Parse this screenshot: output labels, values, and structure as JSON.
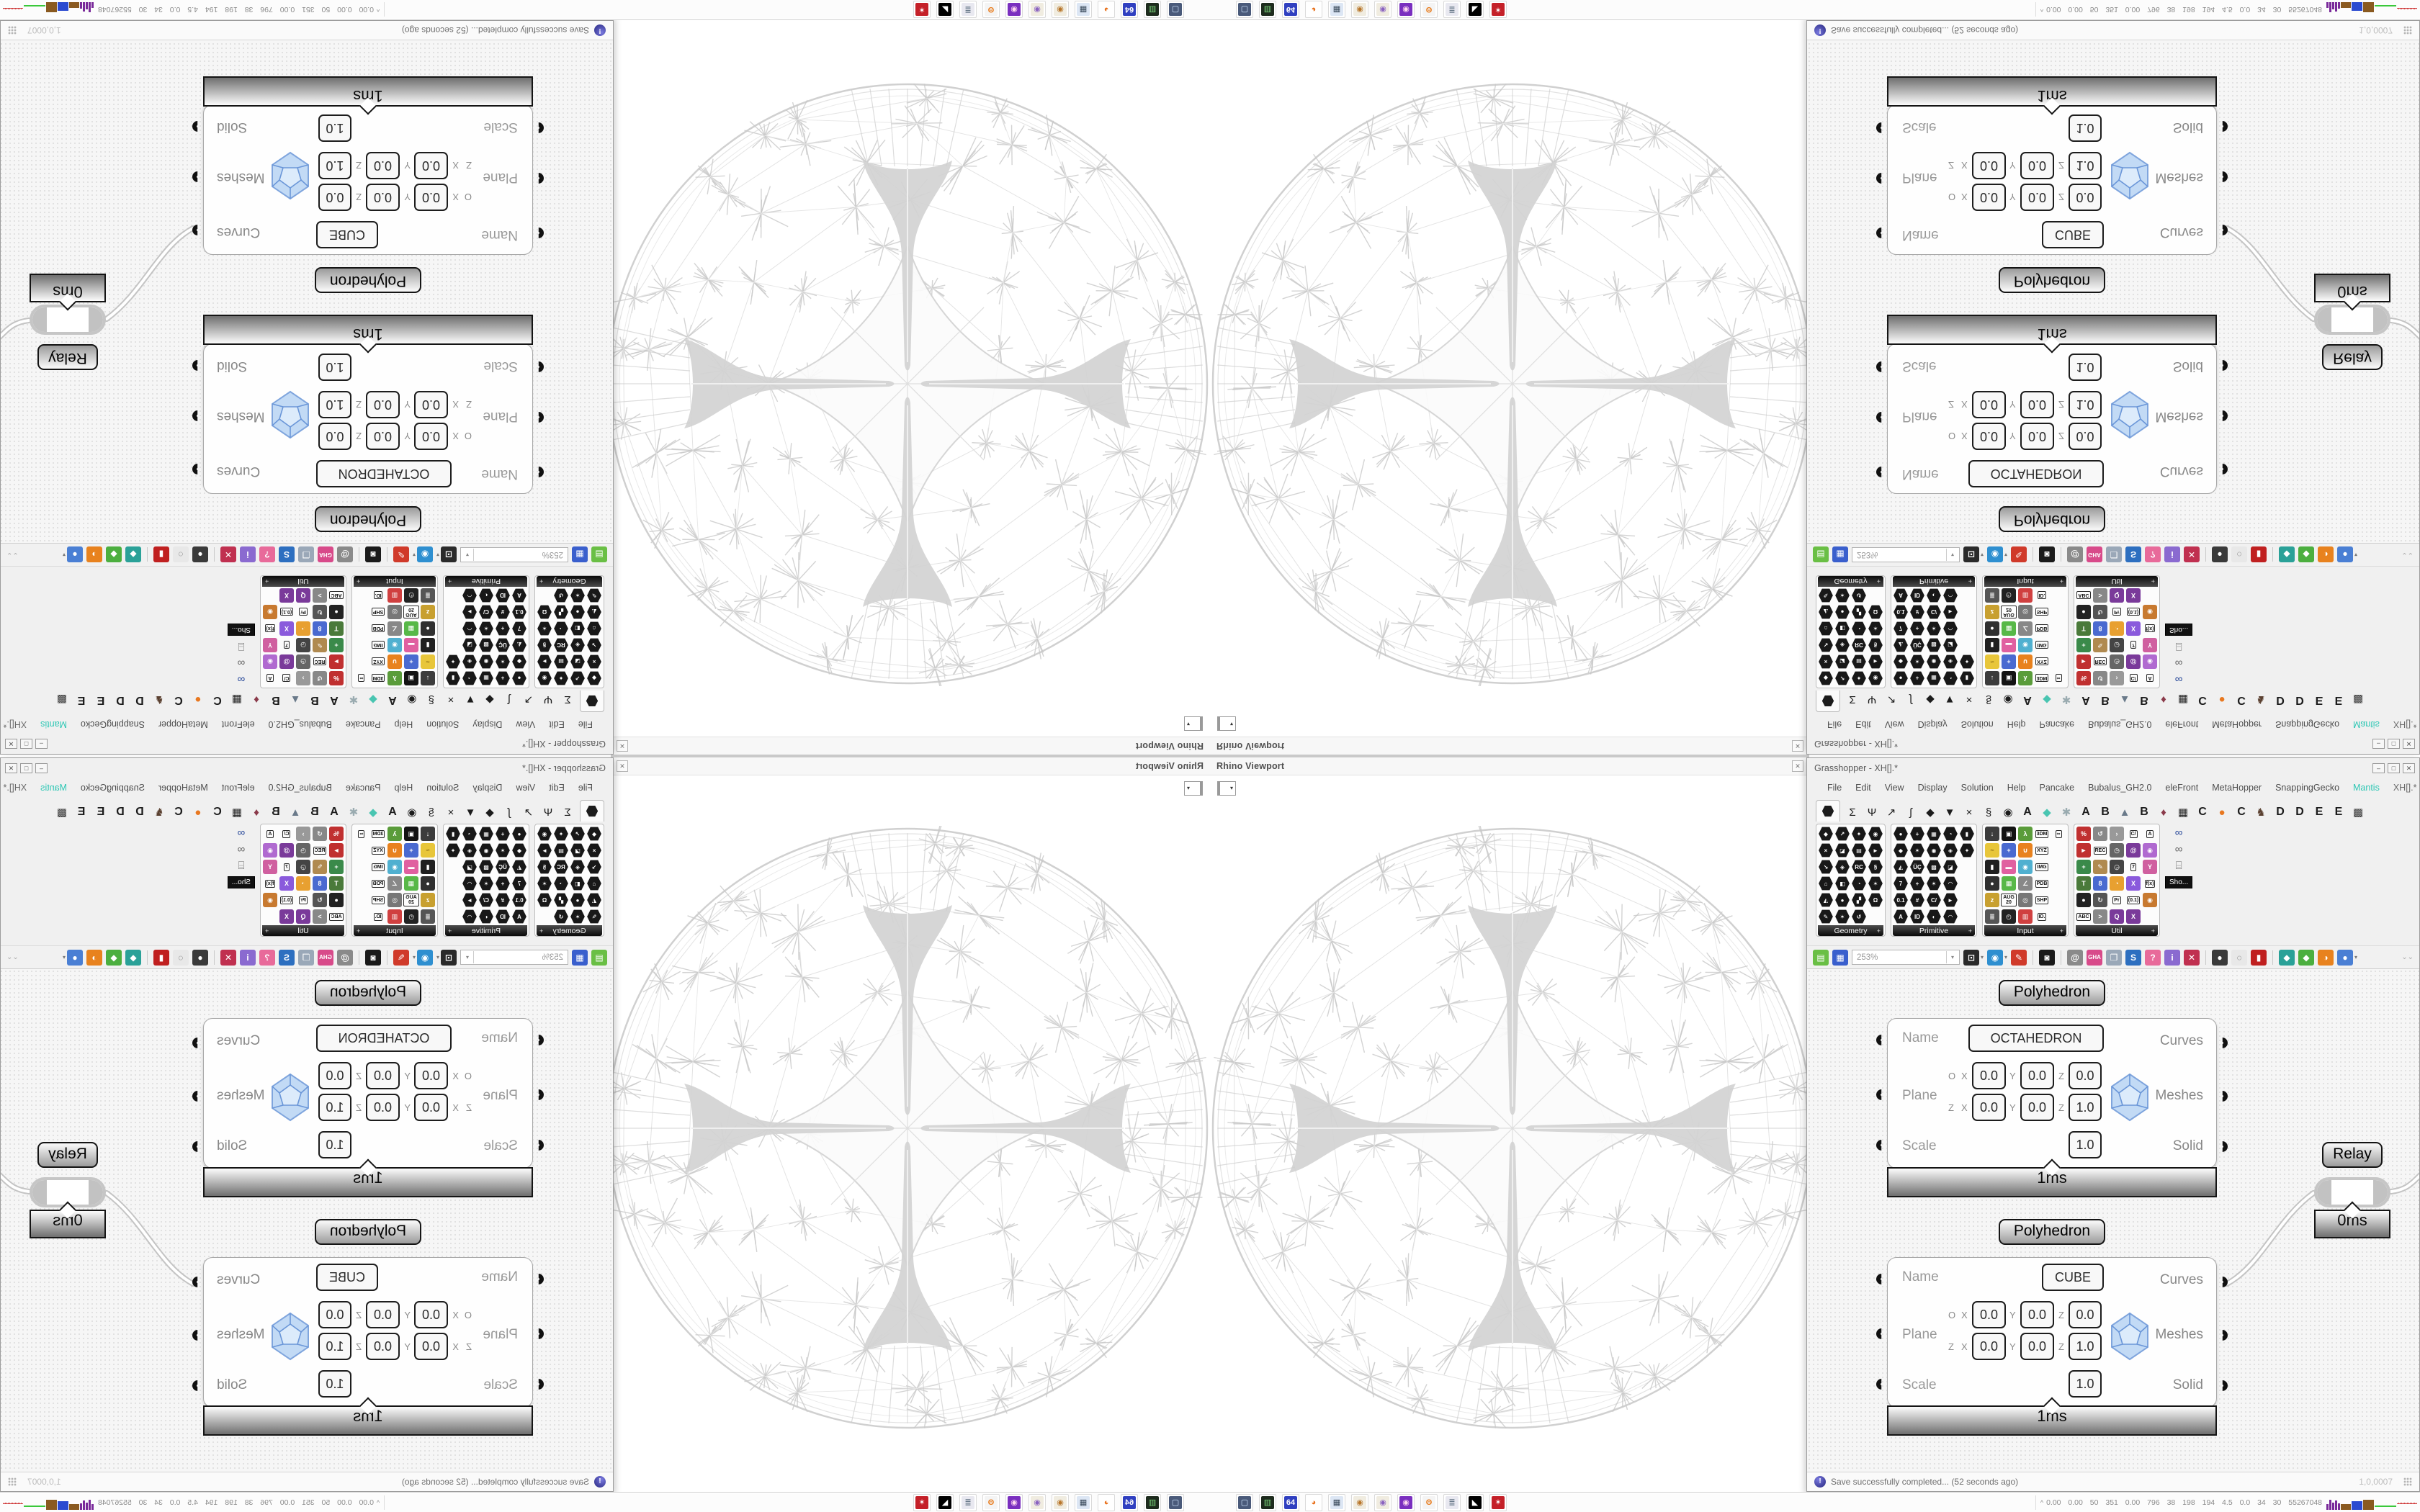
{
  "taskbar": {
    "expand_icon": "^",
    "stats": "0.00 0.00 50 351 0.00 796 38 198 194 4.5 0.0 34 30 55267048",
    "icons": [
      {
        "n": "monitor-icon",
        "g": "▢",
        "bg": "#4a5a7a",
        "fg": "#cfe4ff"
      },
      {
        "n": "green-terminal-icon",
        "g": "▥",
        "bg": "#1d2b1d",
        "fg": "#7ad47a"
      },
      {
        "n": "floppy-64-icon",
        "g": "64",
        "bg": "#3040c0",
        "fg": "#ffffff"
      },
      {
        "n": "firefox-icon",
        "g": "◕",
        "bg": "#ffffff",
        "fg": "#e8701a"
      },
      {
        "n": "calculator-icon",
        "g": "▦",
        "bg": "#dce6f4",
        "fg": "#334455"
      },
      {
        "n": "palette-icon",
        "g": "◉",
        "bg": "#f0ece0",
        "fg": "#b8762a"
      },
      {
        "n": "palette-icon-2",
        "g": "◉",
        "bg": "#f0ece0",
        "fg": "#8a62c0"
      },
      {
        "n": "avatar-purple-icon",
        "g": "◉",
        "bg": "#7a2fbf",
        "fg": "#ffd9f0"
      },
      {
        "n": "blender-icon",
        "g": "ʘ",
        "bg": "#f4f4f4",
        "fg": "#e87a1a"
      },
      {
        "n": "document-scroll-icon",
        "g": "≣",
        "bg": "#e8e8f0",
        "fg": "#667788"
      },
      {
        "n": "black-cat-icon",
        "g": "◣",
        "bg": "#000000",
        "fg": "#ffffff"
      },
      {
        "n": "red-badge-icon",
        "g": "✶",
        "bg": "#c42028",
        "fg": "#ffffff"
      }
    ]
  },
  "rhino": {
    "title": "Rhino Viewport",
    "close_label": "✕",
    "combo_arrow": "▾"
  },
  "gh": {
    "title": "Grasshopper - XH[].*",
    "window_buttons": {
      "min": "–",
      "max": "□",
      "close": "✕"
    },
    "menu": [
      "File",
      "Edit",
      "View",
      "Display",
      "Solution",
      "Help",
      "Pancake",
      "Bubalus_GH2.0",
      "eleFront",
      "MetaHopper",
      "SnappingGecko",
      "Mantis"
    ],
    "menu_right": "XH[].*",
    "tabs": [
      {
        "n": "tab-params",
        "hex": true
      },
      {
        "n": "tab-maths",
        "g": "Σ"
      },
      {
        "n": "tab-sets",
        "g": "Ψ"
      },
      {
        "n": "tab-vector",
        "g": "↗"
      },
      {
        "n": "tab-curve",
        "g": "ʃ"
      },
      {
        "n": "tab-surface",
        "g": "◆"
      },
      {
        "n": "tab-mesh",
        "g": "▼"
      },
      {
        "n": "tab-intersect",
        "g": "×"
      },
      {
        "n": "tab-transform",
        "g": "§"
      },
      {
        "n": "tab-display",
        "g": "◉"
      },
      {
        "n": "tab-plugin-a1",
        "g": "A",
        "b": true
      },
      {
        "n": "tab-plugin-gem",
        "g": "◆",
        "c": "#49c5b1"
      },
      {
        "n": "tab-plugin-flower",
        "g": "✱",
        "c": "#9aabb0"
      },
      {
        "n": "tab-plugin-a2",
        "g": "A",
        "b": true
      },
      {
        "n": "tab-plugin-b1",
        "g": "B",
        "b": true
      },
      {
        "n": "tab-plugin-mountain",
        "g": "▲",
        "c": "#6a7a8a"
      },
      {
        "n": "tab-plugin-b2",
        "g": "B",
        "b": true
      },
      {
        "n": "tab-plugin-shield",
        "g": "♦",
        "c": "#8a3a4a"
      },
      {
        "n": "tab-plugin-grid",
        "g": "▦",
        "c": "#222222"
      },
      {
        "n": "tab-plugin-c1",
        "g": "C",
        "b": true
      },
      {
        "n": "tab-plugin-orange-dot",
        "g": "●",
        "c": "#e87820"
      },
      {
        "n": "tab-plugin-c2",
        "g": "C",
        "b": true
      },
      {
        "n": "tab-plugin-bird",
        "g": "♞",
        "c": "#5a4030"
      },
      {
        "n": "tab-plugin-d1",
        "g": "D",
        "b": true
      },
      {
        "n": "tab-plugin-d2",
        "g": "D",
        "b": true
      },
      {
        "n": "tab-plugin-e1",
        "g": "E",
        "b": true
      },
      {
        "n": "tab-plugin-e2",
        "g": "E",
        "b": true
      },
      {
        "n": "tab-plugin-dots",
        "g": "▩",
        "c": "#333333"
      }
    ],
    "palette": {
      "groups": [
        {
          "label": "Geometry",
          "cols": 4,
          "cells": [
            "h:◆",
            "h:↗",
            "h:✦",
            "h:◉",
            "h:×",
            "h:◪",
            "h:▤",
            "h:►",
            "h:↘",
            "h:◈",
            "h:RC",
            "h:§",
            "h:⌂",
            "h:◧",
            "h:◔",
            "h:✶",
            "h:◭",
            "h:●",
            "h:▞",
            "h:Ω",
            "h:✎",
            "h:✶",
            "h:↺"
          ]
        },
        {
          "label": "Primitive",
          "cols": 5,
          "cells": [
            "h:●",
            "h:+",
            "h:▦",
            "h:◔",
            "h:▮",
            "h:◆",
            "h:✶",
            "h:◉",
            "h:◈",
            "h:✦",
            "h:◭",
            "h:ÜÇ",
            "h:▩",
            "h:◪",
            "b",
            "h:7",
            "h:+",
            "h:✶",
            "h:◠",
            "b",
            "h:0.1",
            "h:#",
            "h:C/",
            "h:►",
            "b",
            "h:A",
            "h:ID",
            "h:◐",
            "h:◠",
            "b"
          ]
        },
        {
          "label": "Input",
          "cols": 5,
          "cells": [
            "k:↓:#3c3c3c:#fff",
            "k:▣:#141414:#fff",
            "k:λ:#5a9c3a:#fff",
            "x:3DM",
            "x:∞",
            "k:~:#e8c63a:#806010",
            "k:+:#4a6ad0:#fff",
            "k:∪:#e8821e:#fff",
            "x:XYZ",
            "b",
            "k:▮:#202020:#fff",
            "k:▬:#e060a0:#fff",
            "k:◉:#50b0d0:#fff",
            "x:IMG",
            "b",
            "k:●:#303030:#fff",
            "k:▦:#58b848:#fff",
            "k:∠:#888888:#fff",
            "x:PDB",
            "b",
            "k:z:#c8a030:#fff",
            "x:AUG 20",
            "k:◎:#777777:#fff",
            "x:SHP",
            "b",
            "k:≣:#555555:#fff",
            "k:◴:#222222:#fff",
            "k:▥:#d04040:#fff",
            "x:ID.",
            "b"
          ]
        },
        {
          "label": "Util",
          "cols": 5,
          "cells": [
            "k:%:#c03030:#fff",
            "k:↺:#888888:#fff",
            "k:›:#999999:#fff",
            "x:C/",
            "x:A",
            "k:►:#c03030:#fff",
            "x:REC",
            "k:◷:#666666:#fff",
            "k:@:#7a3a9a:#fff",
            "k:◉:#b06ad0:#fff",
            "k:+:#3a8a4a:#fff",
            "k:✎:#b08a50:#fff",
            "k:◶:#444444:#fff",
            "x:7",
            "k:Y:#d060a0:#fff",
            "k:T:#4a7a3a:#fff",
            "k:8:#4a6ad0:#fff",
            "k:◔:#e8a030:#fff",
            "k:X:#8a5adc:#fff",
            "x:f(x)",
            "k:●:#222222:#fff",
            "k:↻:#555555:#fff",
            "x:Pr",
            "x:(0.1)",
            "k:◉:#c87a30:#fff",
            "x:ABC",
            "k:>:#888888:#fff",
            "k:Q:#7a3a9a:#fff",
            "k:X:#7a3a9a:#fff",
            "b"
          ]
        }
      ],
      "extra_tooltip": "Sho..."
    },
    "toolbar": {
      "zoom": "253%",
      "icons": [
        {
          "n": "open-file-icon",
          "g": "▤",
          "bg": "#6abf45"
        },
        {
          "n": "save-file-icon",
          "g": "▦",
          "bg": "#3a5fcd"
        },
        {
          "n": "zoom-select",
          "zoom": true
        },
        {
          "n": "fit-frame-icon",
          "g": "⊡",
          "bg": "#2a2a2a",
          "dd": true
        },
        {
          "n": "preview-eye-icon",
          "g": "◉",
          "bg": "#2e8fd0",
          "dd": true
        },
        {
          "n": "sketch-pencil-icon",
          "g": "✎",
          "bg": "#d03a2a"
        },
        {
          "n": "sep"
        },
        {
          "n": "projector-icon",
          "g": "◙",
          "bg": "#1a1a1a"
        },
        {
          "n": "sep"
        },
        {
          "n": "mail-at-icon",
          "g": "@",
          "bg": "#8a8a8a"
        },
        {
          "n": "gha-badge-icon",
          "g": "GHA",
          "bg": "#d84a8a"
        },
        {
          "n": "export-window-icon",
          "g": "❐",
          "bg": "#9aa8b8"
        },
        {
          "n": "search-s-icon",
          "g": "S",
          "bg": "#2d6fc0"
        },
        {
          "n": "help-box-icon",
          "g": "?",
          "bg": "#e86a9a"
        },
        {
          "n": "lightbulb-icon",
          "g": "i",
          "bg": "#8a6ad0"
        },
        {
          "n": "wires-cross-icon",
          "g": "✕",
          "bg": "#c03050"
        },
        {
          "n": "sep"
        },
        {
          "n": "mesh-dark-sphere-icon",
          "g": "●",
          "bg": "#3a3a3a"
        },
        {
          "n": "wire-cylinder-icon",
          "g": "◌",
          "bg": "#e8e8e8",
          "fg": "#555"
        },
        {
          "n": "red-cylinder-icon",
          "g": "▮",
          "bg": "#c02020"
        },
        {
          "n": "sep"
        },
        {
          "n": "preview-teal-icon",
          "g": "◆",
          "bg": "#2aa198"
        },
        {
          "n": "preview-green-icon",
          "g": "◆",
          "bg": "#4caf3f"
        },
        {
          "n": "half-sphere-orange-icon",
          "g": "◑",
          "bg": "#e8821e"
        },
        {
          "n": "blue-ball-icon",
          "g": "●",
          "bg": "#4a7fd4",
          "dd": true
        }
      ]
    },
    "canvas": {
      "axis": {
        "x": "X",
        "y": "Y",
        "z": "Z"
      },
      "comp1": {
        "header": "Polyhedron",
        "name": "OCTAHEDRON",
        "lb_name": "Name",
        "lb_plane": "Plane",
        "lb_scale": "Scale",
        "out1": "Curves",
        "out2": "Meshes",
        "out3": "Solid",
        "r1": {
          "pre": "O",
          "x": "0.0",
          "y": "0.0",
          "z": "0.0"
        },
        "r2": {
          "pre": "Z",
          "x": "0.0",
          "y": "0.0",
          "z": "1.0"
        },
        "scale": "1.0",
        "time": "1ms"
      },
      "comp2": {
        "header": "Polyhedron",
        "name": "CUBE",
        "lb_name": "Name",
        "lb_plane": "Plane",
        "lb_scale": "Scale",
        "out1": "Curves",
        "out2": "Meshes",
        "out3": "Solid",
        "r1": {
          "pre": "O",
          "x": "0.0",
          "y": "0.0",
          "z": "0.0"
        },
        "r2": {
          "pre": "Z",
          "x": "0.0",
          "y": "0.0",
          "z": "1.0"
        },
        "scale": "1.0",
        "time": "1ms"
      },
      "relay": {
        "label": "Relay",
        "time": "0ms"
      }
    },
    "status": {
      "message": "Save successfully completed... (52 seconds ago)",
      "version": "1,0,0007"
    }
  }
}
